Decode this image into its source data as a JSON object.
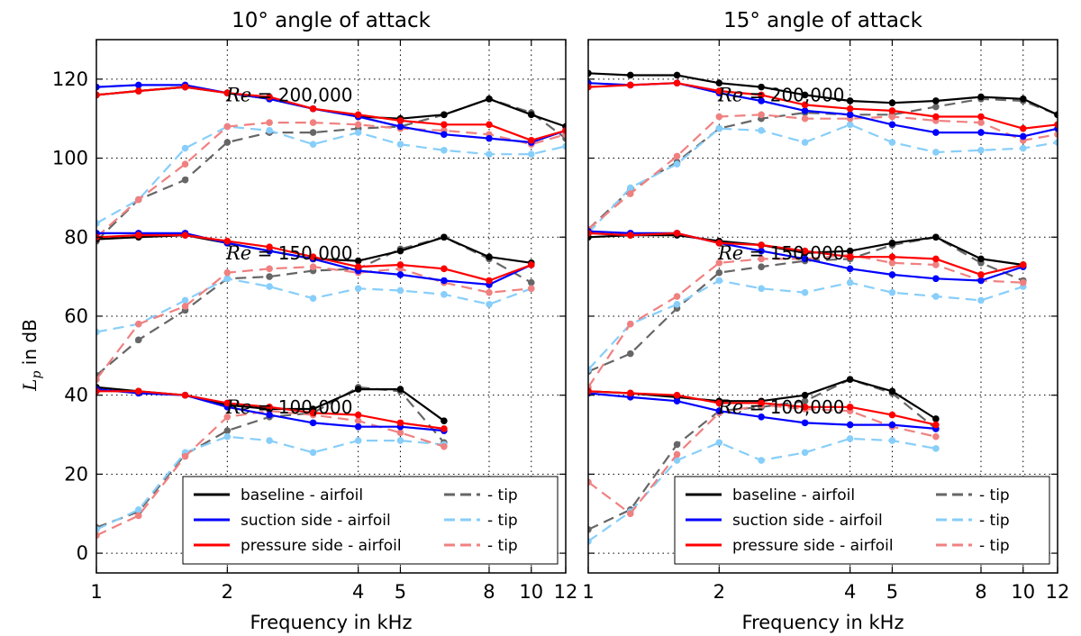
{
  "chart_data": {
    "type": "line",
    "ylabel_main": "L",
    "ylabel_sub": "p",
    "ylabel_rest": " in dB",
    "xlabel": "Frequency in kHz",
    "xscale": "log",
    "xlim": [
      1,
      12
    ],
    "ylim": [
      -5,
      130
    ],
    "xticks": [
      1,
      2,
      4,
      5,
      8,
      10,
      12
    ],
    "yticks": [
      0,
      20,
      40,
      60,
      80,
      100,
      120
    ],
    "grid": true,
    "colors": {
      "baseline_airfoil": "#000000",
      "suction_airfoil": "#0000ff",
      "pressure_airfoil": "#ff0000",
      "baseline_tip": "#666666",
      "suction_tip": "#87cefa",
      "pressure_tip": "#f08080"
    },
    "legend": {
      "location": "lower-right",
      "entries": [
        {
          "key": "baseline_airfoil",
          "label": "baseline - airfoil"
        },
        {
          "key": "suction_airfoil",
          "label": "suction side - airfoil"
        },
        {
          "key": "pressure_airfoil",
          "label": "pressure side - airfoil"
        },
        {
          "key": "baseline_tip",
          "label": "- tip"
        },
        {
          "key": "suction_tip",
          "label": "- tip"
        },
        {
          "key": "pressure_tip",
          "label": "- tip"
        }
      ]
    },
    "reynolds_labels": [
      {
        "re": "Re",
        "value": " = 200,000",
        "y": 116
      },
      {
        "re": "Re",
        "value": " = 150,000",
        "y": 76
      },
      {
        "re": "Re",
        "value": " = 100,000",
        "y": 37
      }
    ],
    "x": [
      1,
      1.25,
      1.6,
      2,
      2.5,
      3.15,
      4,
      5,
      6.3,
      8,
      10,
      12
    ],
    "panels": [
      {
        "title": "10° angle of attack",
        "series": [
          {
            "key": "baseline_airfoil",
            "dashed": false,
            "values": [
              116,
              117,
              118,
              116.5,
              115,
              112.5,
              110.5,
              110,
              111,
              115,
              111,
              108
            ]
          },
          {
            "key": "suction_airfoil",
            "dashed": false,
            "values": [
              118,
              118.5,
              118.5,
              116.5,
              115,
              112.5,
              110.5,
              108,
              106,
              105,
              104,
              107
            ]
          },
          {
            "key": "pressure_airfoil",
            "dashed": false,
            "values": [
              116,
              117,
              118,
              116.5,
              115.5,
              112.5,
              111,
              109.5,
              108.5,
              108.5,
              104.5,
              107
            ]
          },
          {
            "key": "baseline_tip",
            "dashed": true,
            "values": [
              79,
              89.5,
              94.5,
              104,
              106.5,
              106.5,
              107.5,
              108,
              111,
              115,
              111.5,
              105
            ]
          },
          {
            "key": "suction_tip",
            "dashed": true,
            "values": [
              83.5,
              89.5,
              102.5,
              108,
              107,
              103.5,
              106.5,
              103.5,
              102,
              101,
              101,
              103
            ]
          },
          {
            "key": "pressure_tip",
            "dashed": true,
            "values": [
              80,
              89.5,
              98.5,
              108,
              109,
              109,
              108.5,
              107.5,
              107,
              106,
              103.5,
              106
            ]
          },
          {
            "key": "baseline_airfoil",
            "dashed": false,
            "values": [
              79.5,
              80,
              80.5,
              78.5,
              76.5,
              74.5,
              74,
              76.5,
              80,
              75,
              73.5
            ]
          },
          {
            "key": "suction_airfoil",
            "dashed": false,
            "values": [
              81,
              81,
              81,
              78.5,
              76.5,
              74.5,
              71.5,
              70.5,
              69,
              68,
              73
            ]
          },
          {
            "key": "pressure_airfoil",
            "dashed": false,
            "values": [
              80,
              80.5,
              80.5,
              79,
              77.5,
              75,
              72.5,
              73,
              72,
              69,
              73
            ]
          },
          {
            "key": "baseline_tip",
            "dashed": true,
            "values": [
              45,
              54,
              61.5,
              69.5,
              70,
              71.5,
              72,
              77,
              80,
              74.5,
              68.5
            ]
          },
          {
            "key": "suction_tip",
            "dashed": true,
            "values": [
              56,
              58,
              64,
              69.5,
              67.5,
              64.5,
              67,
              66.5,
              65.5,
              63,
              67
            ]
          },
          {
            "key": "pressure_tip",
            "dashed": true,
            "values": [
              44,
              58,
              62.5,
              71,
              72,
              72.5,
              71,
              72,
              68.5,
              66,
              67
            ]
          },
          {
            "key": "baseline_airfoil",
            "dashed": false,
            "values": [
              42,
              41,
              40,
              37.5,
              36.5,
              36.5,
              41.5,
              41.5,
              33.5
            ]
          },
          {
            "key": "suction_airfoil",
            "dashed": false,
            "values": [
              41.5,
              40.5,
              40,
              37,
              35,
              33,
              32,
              32,
              31
            ]
          },
          {
            "key": "pressure_airfoil",
            "dashed": false,
            "values": [
              41,
              41,
              40,
              38,
              37,
              35.5,
              35,
              33,
              31.5
            ]
          },
          {
            "key": "baseline_tip",
            "dashed": true,
            "values": [
              6.5,
              10.5,
              25,
              31,
              34.5,
              35.5,
              42,
              41,
              28
            ]
          },
          {
            "key": "suction_tip",
            "dashed": true,
            "values": [
              6,
              11,
              25.5,
              29.5,
              28.5,
              25.5,
              28.5,
              28.5,
              27.5
            ]
          },
          {
            "key": "pressure_tip",
            "dashed": true,
            "values": [
              4.5,
              9.5,
              24.5,
              34.5,
              36,
              35,
              33.5,
              30.5,
              27
            ]
          }
        ]
      },
      {
        "title": "15° angle of attack",
        "series": [
          {
            "key": "baseline_airfoil",
            "dashed": false,
            "values": [
              121.5,
              121,
              121,
              119,
              118,
              116,
              114.5,
              114,
              114.5,
              115.5,
              115,
              111
            ]
          },
          {
            "key": "suction_airfoil",
            "dashed": false,
            "values": [
              119,
              118.5,
              119,
              116.5,
              114.5,
              112,
              111,
              108.5,
              106.5,
              106.5,
              105.5,
              107.5
            ]
          },
          {
            "key": "pressure_airfoil",
            "dashed": false,
            "values": [
              118,
              118.5,
              119,
              117,
              116,
              113.5,
              112.5,
              112,
              110.5,
              110.5,
              107.5,
              108.5
            ]
          },
          {
            "key": "baseline_tip",
            "dashed": true,
            "values": [
              82,
              92,
              99,
              107.5,
              110,
              111.5,
              111,
              111,
              113,
              115,
              114.5,
              111
            ]
          },
          {
            "key": "suction_tip",
            "dashed": true,
            "values": [
              81,
              92.5,
              98.5,
              107.5,
              107,
              104,
              108.5,
              104,
              101.5,
              102,
              102.5,
              104
            ]
          },
          {
            "key": "pressure_tip",
            "dashed": true,
            "values": [
              82,
              91,
              100.5,
              110.5,
              111,
              110,
              110,
              110.5,
              109.5,
              109,
              104.5,
              106
            ]
          },
          {
            "key": "baseline_airfoil",
            "dashed": false,
            "values": [
              80,
              80.5,
              80.5,
              79,
              78,
              76,
              76.5,
              78.5,
              80,
              74.5,
              73
            ]
          },
          {
            "key": "suction_airfoil",
            "dashed": false,
            "values": [
              81.5,
              81,
              81,
              78.5,
              76.5,
              74.5,
              72,
              70.5,
              69.5,
              69,
              72.5
            ]
          },
          {
            "key": "pressure_airfoil",
            "dashed": false,
            "values": [
              81,
              80.5,
              81,
              78.5,
              78,
              76.5,
              75,
              75,
              74.5,
              70.5,
              73
            ]
          },
          {
            "key": "baseline_tip",
            "dashed": true,
            "values": [
              46,
              50.5,
              62,
              71,
              72.5,
              74,
              74.5,
              78,
              80,
              73.5,
              69
            ]
          },
          {
            "key": "suction_tip",
            "dashed": true,
            "values": [
              46.5,
              58,
              63,
              69,
              67,
              66,
              68.5,
              66,
              65,
              64,
              67.5
            ]
          },
          {
            "key": "pressure_tip",
            "dashed": true,
            "values": [
              42,
              58,
              65,
              73.5,
              74.5,
              74.5,
              75.5,
              73.5,
              73,
              69,
              68.5
            ]
          },
          {
            "key": "baseline_airfoil",
            "dashed": false,
            "values": [
              41,
              40.5,
              39.5,
              38.5,
              38.5,
              40,
              44,
              41,
              34
            ]
          },
          {
            "key": "suction_airfoil",
            "dashed": false,
            "values": [
              40.5,
              39.5,
              38.5,
              36,
              34.5,
              33,
              32.5,
              32.5,
              31.5
            ]
          },
          {
            "key": "pressure_airfoil",
            "dashed": false,
            "values": [
              41,
              40.5,
              40,
              38,
              38,
              37,
              37,
              35,
              32.5
            ]
          },
          {
            "key": "baseline_tip",
            "dashed": true,
            "values": [
              6,
              11,
              27.5,
              36,
              37,
              38.5,
              44,
              40.5,
              31.5
            ]
          },
          {
            "key": "suction_tip",
            "dashed": true,
            "values": [
              3,
              10.5,
              23.5,
              28,
              23.5,
              25.5,
              29,
              28.5,
              26.5
            ]
          },
          {
            "key": "pressure_tip",
            "dashed": true,
            "values": [
              18,
              10,
              25,
              35.5,
              37.5,
              36.5,
              36,
              32,
              29.5
            ]
          }
        ]
      }
    ]
  }
}
